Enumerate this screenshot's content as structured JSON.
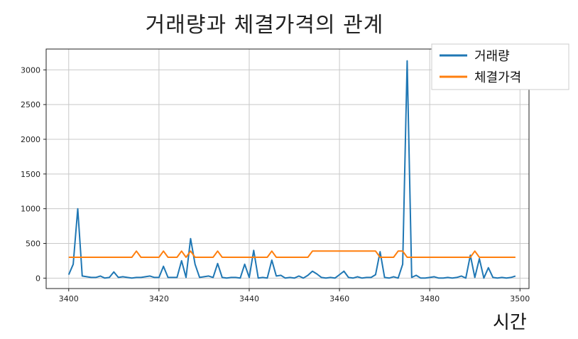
{
  "chart_data": {
    "type": "line",
    "title": "거래량과 체결가격의 관계",
    "xlabel": "시간",
    "ylabel": "",
    "xlim": [
      3395,
      3502
    ],
    "ylim": [
      -150,
      3300
    ],
    "xticks": [
      3400,
      3420,
      3440,
      3460,
      3480,
      3500
    ],
    "yticks": [
      0,
      500,
      1000,
      1500,
      2000,
      2500,
      3000
    ],
    "grid": true,
    "legend_position": "top-right",
    "series": [
      {
        "name": "거래량",
        "color": "#1f77b4",
        "x": [
          3400,
          3401,
          3402,
          3403,
          3404,
          3405,
          3406,
          3407,
          3408,
          3409,
          3410,
          3411,
          3412,
          3413,
          3414,
          3415,
          3416,
          3417,
          3418,
          3419,
          3420,
          3421,
          3422,
          3423,
          3424,
          3425,
          3426,
          3427,
          3428,
          3429,
          3430,
          3431,
          3432,
          3433,
          3434,
          3435,
          3436,
          3437,
          3438,
          3439,
          3440,
          3441,
          3442,
          3443,
          3444,
          3445,
          3446,
          3447,
          3448,
          3449,
          3450,
          3451,
          3452,
          3453,
          3454,
          3455,
          3456,
          3457,
          3458,
          3459,
          3460,
          3461,
          3462,
          3463,
          3464,
          3465,
          3466,
          3467,
          3468,
          3469,
          3470,
          3471,
          3472,
          3473,
          3474,
          3475,
          3476,
          3477,
          3478,
          3479,
          3480,
          3481,
          3482,
          3483,
          3484,
          3485,
          3486,
          3487,
          3488,
          3489,
          3490,
          3491,
          3492,
          3493,
          3494,
          3495,
          3496,
          3497,
          3498,
          3499
        ],
        "values": [
          50,
          200,
          1000,
          30,
          20,
          10,
          10,
          30,
          0,
          10,
          90,
          10,
          20,
          10,
          0,
          10,
          10,
          20,
          30,
          10,
          10,
          170,
          10,
          10,
          10,
          250,
          10,
          570,
          200,
          10,
          20,
          30,
          10,
          210,
          10,
          0,
          10,
          10,
          0,
          200,
          10,
          400,
          0,
          10,
          0,
          260,
          30,
          40,
          0,
          10,
          0,
          30,
          0,
          40,
          100,
          60,
          10,
          0,
          10,
          0,
          50,
          100,
          10,
          0,
          20,
          0,
          10,
          10,
          50,
          380,
          10,
          0,
          20,
          0,
          200,
          3130,
          10,
          40,
          0,
          0,
          10,
          20,
          0,
          0,
          10,
          0,
          10,
          30,
          0,
          330,
          10,
          280,
          0,
          150,
          10,
          0,
          10,
          0,
          10,
          30
        ]
      },
      {
        "name": "체결가격",
        "color": "#ff7f0e",
        "x": [
          3400,
          3401,
          3402,
          3403,
          3404,
          3405,
          3406,
          3407,
          3408,
          3409,
          3410,
          3411,
          3412,
          3413,
          3414,
          3415,
          3416,
          3417,
          3418,
          3419,
          3420,
          3421,
          3422,
          3423,
          3424,
          3425,
          3426,
          3427,
          3428,
          3429,
          3430,
          3431,
          3432,
          3433,
          3434,
          3435,
          3436,
          3437,
          3438,
          3439,
          3440,
          3441,
          3442,
          3443,
          3444,
          3445,
          3446,
          3447,
          3448,
          3449,
          3450,
          3451,
          3452,
          3453,
          3454,
          3455,
          3456,
          3457,
          3458,
          3459,
          3460,
          3461,
          3462,
          3463,
          3464,
          3465,
          3466,
          3467,
          3468,
          3469,
          3470,
          3471,
          3472,
          3473,
          3474,
          3475,
          3476,
          3477,
          3478,
          3479,
          3480,
          3481,
          3482,
          3483,
          3484,
          3485,
          3486,
          3487,
          3488,
          3489,
          3490,
          3491,
          3492,
          3493,
          3494,
          3495,
          3496,
          3497,
          3498,
          3499
        ],
        "values": [
          300,
          300,
          300,
          300,
          300,
          300,
          300,
          300,
          300,
          300,
          300,
          300,
          300,
          300,
          300,
          390,
          300,
          300,
          300,
          300,
          300,
          390,
          300,
          300,
          300,
          390,
          300,
          390,
          300,
          300,
          300,
          300,
          300,
          390,
          300,
          300,
          300,
          300,
          300,
          300,
          300,
          300,
          300,
          300,
          300,
          390,
          300,
          300,
          300,
          300,
          300,
          300,
          300,
          300,
          390,
          390,
          390,
          390,
          390,
          390,
          390,
          390,
          390,
          390,
          390,
          390,
          390,
          390,
          390,
          300,
          300,
          300,
          300,
          390,
          390,
          300,
          300,
          300,
          300,
          300,
          300,
          300,
          300,
          300,
          300,
          300,
          300,
          300,
          300,
          300,
          390,
          300,
          300,
          300,
          300,
          300,
          300,
          300,
          300,
          300
        ]
      }
    ]
  }
}
